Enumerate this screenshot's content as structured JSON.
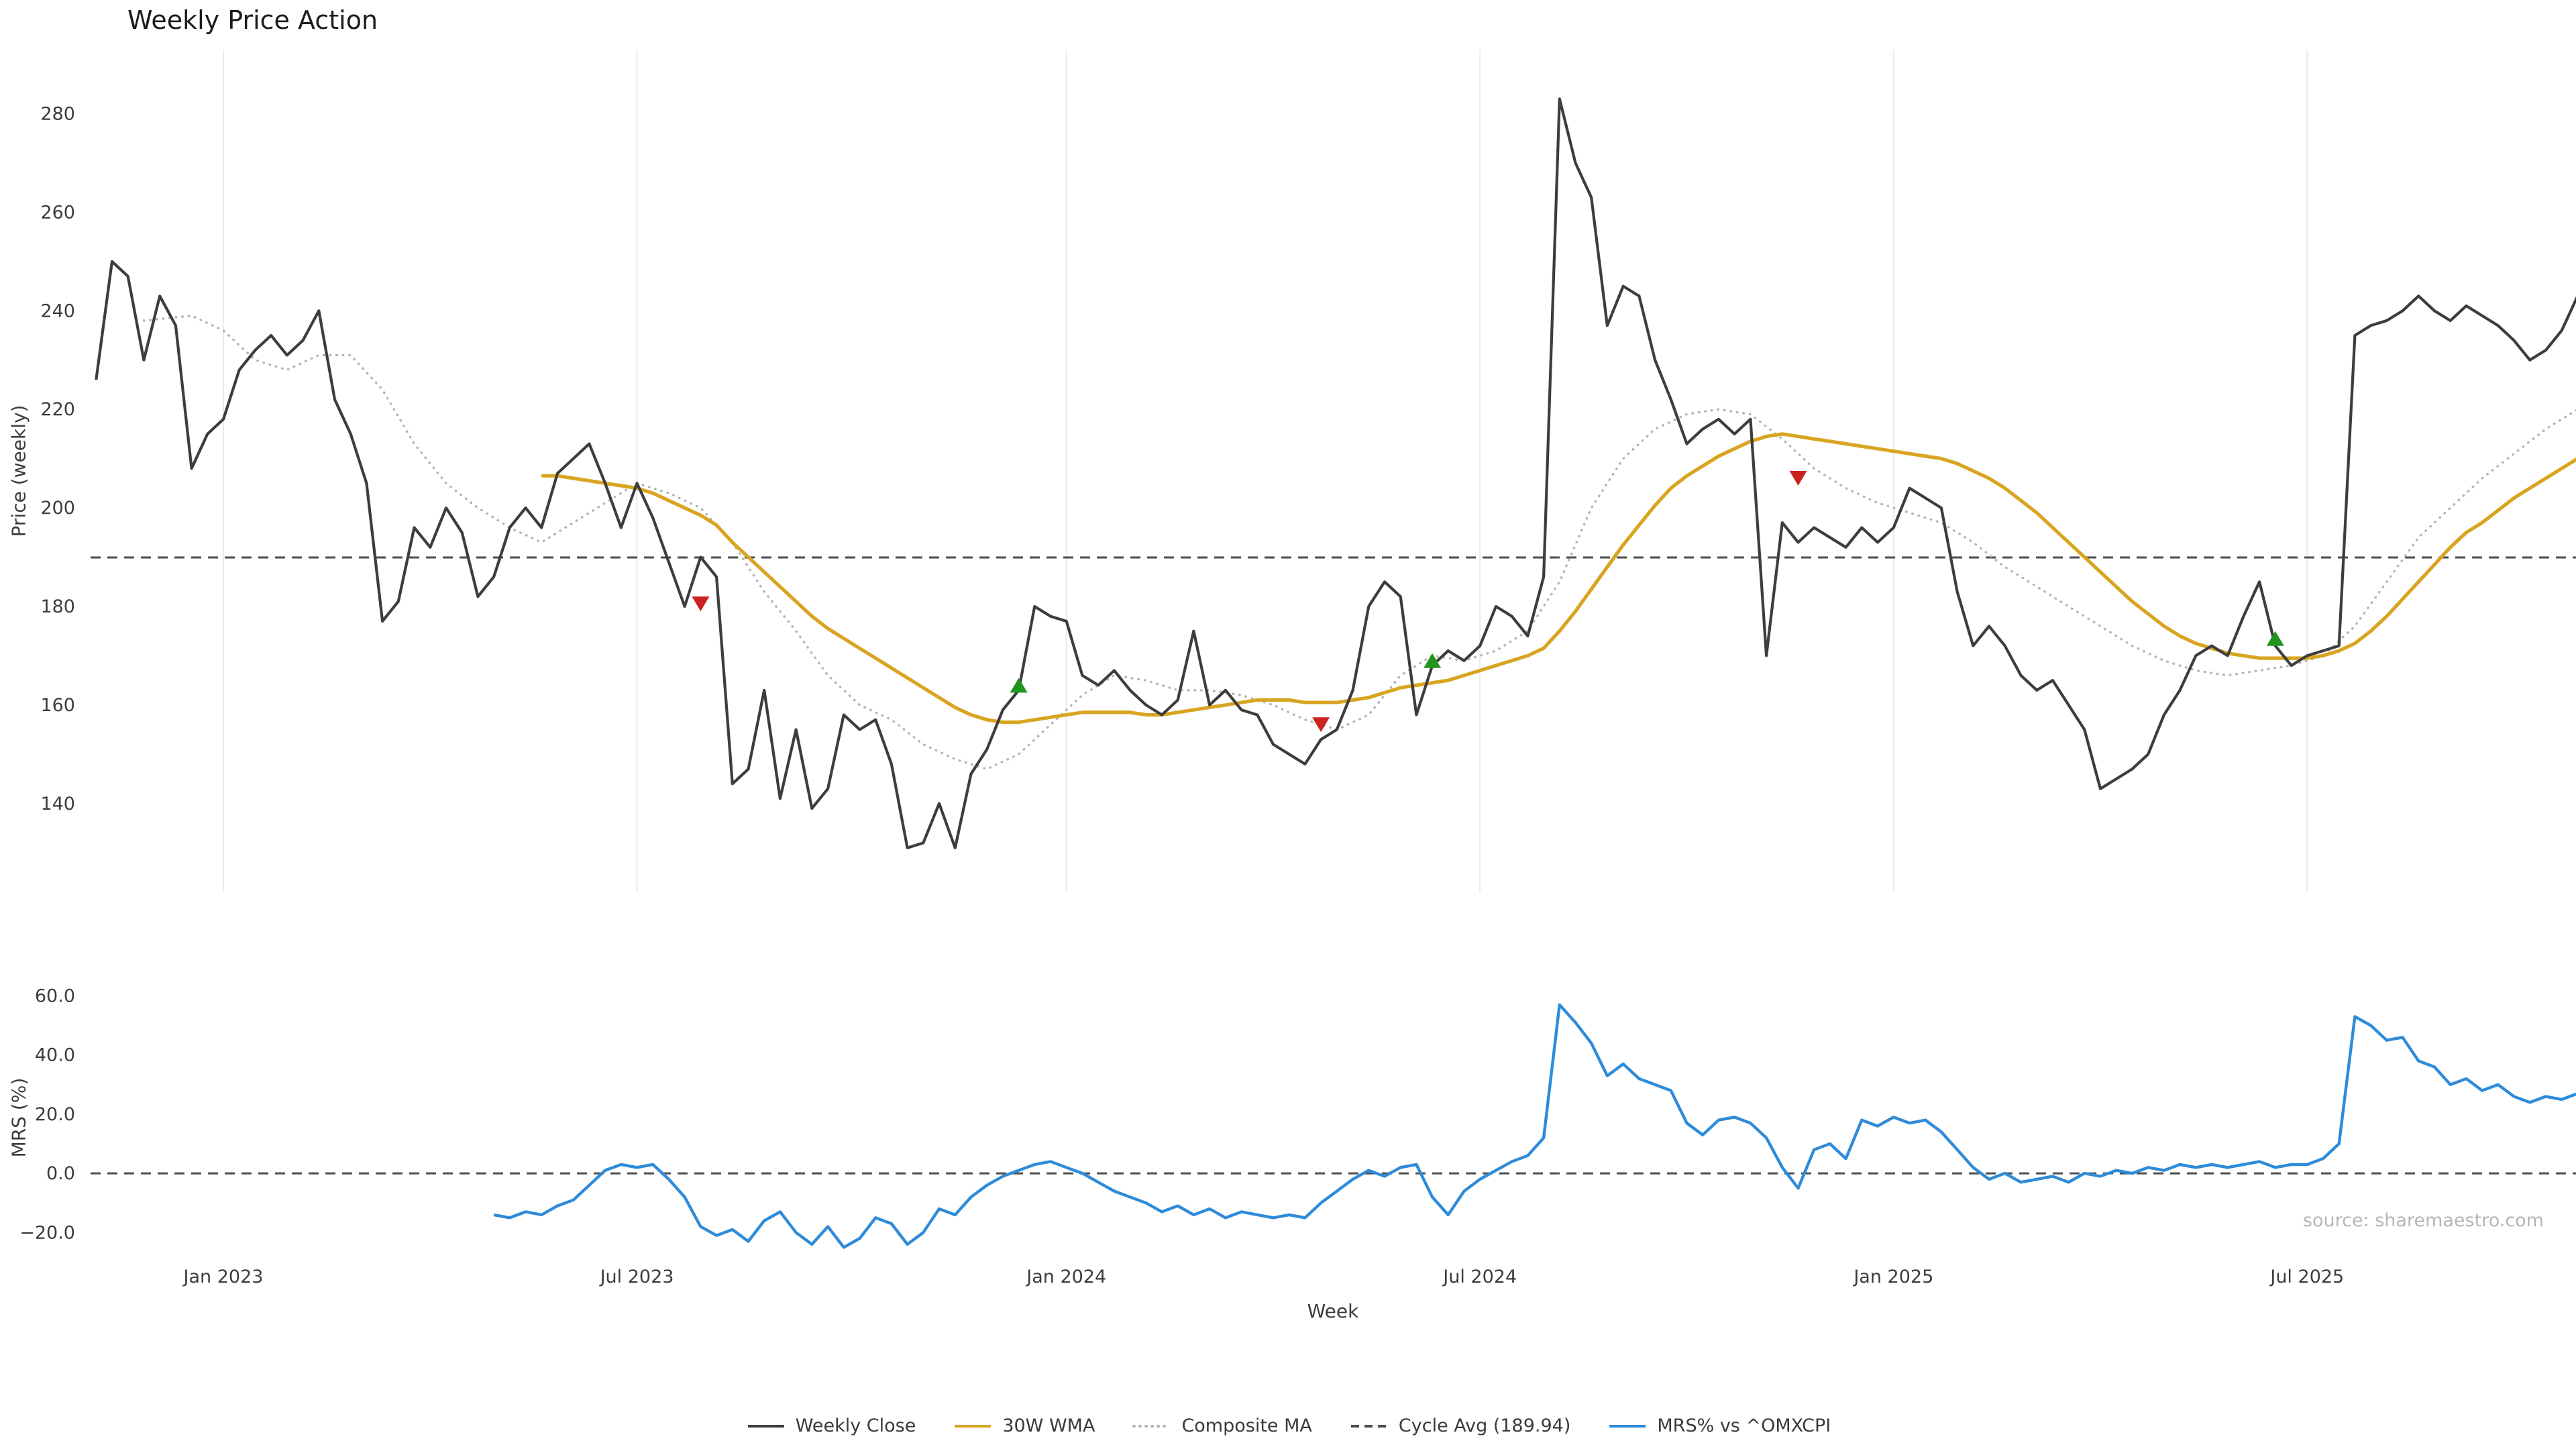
{
  "title": "Weekly Price Action",
  "source_note": "source: sharemaestro.com",
  "colors": {
    "close": "#3d3d3d",
    "wma": "#d9a420",
    "composite": "#b3b3b3",
    "cycle_avg": "#4d4d4d",
    "mrs": "#2e8bd9",
    "sell": "#cc2222",
    "buy": "#21961f",
    "grid": "#ebebeb",
    "text": "#3c3c3c",
    "muted": "#b6b6b6"
  },
  "legend": [
    {
      "label": "Weekly Close",
      "color": "#3d3d3d",
      "style": "solid"
    },
    {
      "label": "30W WMA",
      "color": "#d9a420",
      "style": "solid"
    },
    {
      "label": "Composite MA",
      "color": "#b3b3b3",
      "style": "dotted"
    },
    {
      "label": "Cycle Avg (189.94)",
      "color": "#4d4d4d",
      "style": "dashed"
    },
    {
      "label": "MRS% vs ^OMXCPI",
      "color": "#2e8bd9",
      "style": "solid"
    }
  ],
  "chart_data": {
    "type": "line",
    "title": "Weekly Price Action",
    "xlabel": "Week",
    "x_axis": {
      "unit": "week_index",
      "range_weeks": [
        0,
        156
      ],
      "ticks": [
        {
          "week": 8,
          "label": "Jan 2023"
        },
        {
          "week": 34,
          "label": "Jul 2023"
        },
        {
          "week": 61,
          "label": "Jan 2024"
        },
        {
          "week": 87,
          "label": "Jul 2024"
        },
        {
          "week": 113,
          "label": "Jan 2025"
        },
        {
          "week": 139,
          "label": "Jul 2025"
        }
      ]
    },
    "price_panel": {
      "ylabel": "Price (weekly)",
      "ylim": [
        122,
        293
      ],
      "yticks": [
        140,
        160,
        180,
        200,
        220,
        240,
        260,
        280
      ],
      "cycle_avg": 189.94,
      "grid": "vertical-only",
      "series": [
        {
          "name": "Weekly Close",
          "color": "#3d3d3d",
          "style": "solid",
          "start_week": 0,
          "values": [
            226,
            250,
            247,
            230,
            243,
            237,
            208,
            215,
            218,
            228,
            232,
            235,
            231,
            234,
            240,
            222,
            215,
            205,
            177,
            181,
            196,
            192,
            200,
            195,
            182,
            186,
            196,
            200,
            196,
            207,
            210,
            213,
            205,
            196,
            205,
            198,
            189,
            180,
            190,
            186,
            144,
            147,
            163,
            141,
            155,
            139,
            143,
            158,
            155,
            157,
            148,
            131,
            132,
            140,
            131,
            146,
            151,
            159,
            163,
            180,
            178,
            177,
            166,
            164,
            167,
            163,
            160,
            158,
            161,
            175,
            160,
            163,
            159,
            158,
            152,
            150,
            148,
            153,
            155,
            163,
            180,
            185,
            182,
            158,
            168,
            171,
            169,
            172,
            180,
            178,
            174,
            186,
            283,
            270,
            263,
            237,
            245,
            243,
            230,
            222,
            213,
            216,
            218,
            215,
            218,
            170,
            197,
            193,
            196,
            194,
            192,
            196,
            193,
            196,
            204,
            202,
            200,
            183,
            172,
            176,
            172,
            166,
            163,
            165,
            160,
            155,
            143,
            145,
            147,
            150,
            158,
            163,
            170,
            172,
            170,
            178,
            185,
            172,
            168,
            170,
            171,
            172,
            235,
            237,
            238,
            240,
            243,
            240,
            238,
            241,
            239,
            237,
            234,
            230,
            232,
            236,
            243
          ]
        },
        {
          "name": "30W WMA",
          "color": "#d9a420",
          "style": "solid",
          "start_week": 28,
          "values": [
            206.5,
            206.5,
            206,
            205.5,
            205,
            204.5,
            204,
            203,
            201.5,
            200,
            198.5,
            196.5,
            193,
            190,
            187,
            184,
            181,
            178,
            175.5,
            173.5,
            171.5,
            169.5,
            167.5,
            165.5,
            163.5,
            161.5,
            159.5,
            158,
            157,
            156.5,
            156.5,
            157,
            157.5,
            158,
            158.5,
            158.5,
            158.5,
            158.5,
            158,
            158,
            158.5,
            159,
            159.5,
            160,
            160.5,
            161,
            161,
            161,
            160.5,
            160.5,
            160.5,
            161,
            161.5,
            162.5,
            163.5,
            164,
            164.5,
            165,
            166,
            167,
            168,
            169,
            170,
            171.5,
            175,
            179,
            183.5,
            188,
            192.5,
            196.5,
            200.5,
            204,
            206.5,
            208.5,
            210.5,
            212,
            213.5,
            214.5,
            215,
            214.5,
            214,
            213.5,
            213,
            212.5,
            212,
            211.5,
            211,
            210.5,
            210,
            209,
            207.5,
            206,
            204,
            201.5,
            199,
            196,
            193,
            190,
            187,
            184,
            181,
            178.5,
            176,
            174,
            172.5,
            171.5,
            170.5,
            170,
            169.5,
            169.5,
            169.5,
            169.5,
            170,
            171,
            172.5,
            175,
            178,
            181.5,
            185,
            188.5,
            192,
            195,
            197,
            199.5,
            202,
            204,
            206,
            208,
            210
          ]
        },
        {
          "name": "Composite MA",
          "color": "#b3b3b3",
          "style": "dotted",
          "weeks": [
            3,
            6,
            8,
            10,
            12,
            14,
            16,
            18,
            20,
            22,
            24,
            26,
            28,
            30,
            32,
            34,
            36,
            38,
            40,
            42,
            44,
            46,
            48,
            50,
            52,
            54,
            56,
            58,
            60,
            62,
            64,
            66,
            68,
            70,
            72,
            74,
            76,
            78,
            80,
            82,
            84,
            86,
            88,
            90,
            92,
            94,
            96,
            98,
            100,
            102,
            104,
            106,
            108,
            110,
            112,
            114,
            116,
            118,
            120,
            122,
            124,
            126,
            128,
            130,
            132,
            134,
            136,
            138,
            140,
            142,
            144,
            146,
            148,
            150,
            152,
            154,
            156
          ],
          "values": [
            238,
            239,
            236,
            230,
            228,
            231,
            231,
            224,
            213,
            205,
            200,
            196,
            193,
            197,
            201,
            205,
            203,
            200,
            193,
            183,
            175,
            166,
            160,
            157,
            152,
            149,
            147,
            150,
            156,
            162,
            166,
            165,
            163,
            163,
            162,
            160,
            157,
            155,
            158,
            166,
            170,
            169,
            171,
            175,
            185,
            200,
            210,
            216,
            219,
            220,
            219,
            214,
            208,
            204,
            201,
            199,
            197,
            193,
            188,
            184,
            180,
            176,
            172,
            169,
            167,
            166,
            167,
            168,
            170,
            176,
            185,
            194,
            200,
            206,
            211,
            216,
            220
          ]
        }
      ],
      "signals": {
        "sell": {
          "color": "#cc2222",
          "marker": "triangle-down",
          "points": [
            {
              "week": 38,
              "price": 180.5
            },
            {
              "week": 77,
              "price": 156
            },
            {
              "week": 107,
              "price": 206
            }
          ]
        },
        "buy": {
          "color": "#21961f",
          "marker": "triangle-up",
          "points": [
            {
              "week": 58,
              "price": 164
            },
            {
              "week": 84,
              "price": 169
            },
            {
              "week": 137,
              "price": 173.5
            }
          ]
        }
      }
    },
    "mrs_panel": {
      "ylabel": "MRS (%)",
      "ylim": [
        -25.6,
        63.3
      ],
      "yticks": [
        {
          "value": -20,
          "label": "−20.0"
        },
        {
          "value": 0,
          "label": "0.0"
        },
        {
          "value": 20,
          "label": "20.0"
        },
        {
          "value": 40,
          "label": "40.0"
        },
        {
          "value": 60,
          "label": "60.0"
        }
      ],
      "zero_line": 0,
      "series": [
        {
          "name": "MRS% vs ^OMXCPI",
          "color": "#2e8bd9",
          "style": "solid",
          "start_week": 25,
          "values": [
            -14,
            -15,
            -13,
            -14,
            -11,
            -9,
            -4,
            1,
            3,
            2,
            3,
            -2,
            -8,
            -18,
            -21,
            -19,
            -23,
            -16,
            -13,
            -20,
            -24,
            -18,
            -25,
            -22,
            -15,
            -17,
            -24,
            -20,
            -12,
            -14,
            -8,
            -4,
            -1,
            1,
            3,
            4,
            2,
            0,
            -3,
            -6,
            -8,
            -10,
            -13,
            -11,
            -14,
            -12,
            -15,
            -13,
            -14,
            -15,
            -14,
            -15,
            -10,
            -6,
            -2,
            1,
            -1,
            2,
            3,
            -8,
            -14,
            -6,
            -2,
            1,
            4,
            6,
            12,
            57,
            51,
            44,
            33,
            37,
            32,
            30,
            28,
            17,
            13,
            18,
            19,
            17,
            12,
            2,
            -5,
            8,
            10,
            5,
            18,
            16,
            19,
            17,
            18,
            14,
            8,
            2,
            -2,
            0,
            -3,
            -2,
            -1,
            -3,
            0,
            -1,
            1,
            0,
            2,
            1,
            3,
            2,
            3,
            2,
            3,
            4,
            2,
            3,
            3,
            5,
            10,
            53,
            50,
            45,
            46,
            38,
            36,
            30,
            32,
            28,
            30,
            26,
            24,
            26,
            25,
            27
          ]
        }
      ]
    }
  }
}
